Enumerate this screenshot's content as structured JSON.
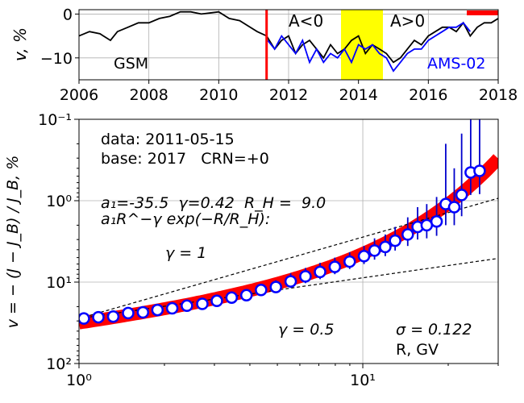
{
  "chart_data": [
    {
      "type": "line",
      "ylabel": "v, %",
      "xlim": [
        2006,
        2018
      ],
      "ylim": [
        -15,
        1
      ],
      "x_ticks": [
        2006,
        2008,
        2010,
        2012,
        2014,
        2016,
        2018
      ],
      "x_tick_labels": [
        "2006",
        "2008",
        "2010",
        "2012",
        "2014",
        "2016",
        "2018"
      ],
      "y_ticks": [
        0,
        -10
      ],
      "y_tick_labels": [
        "0",
        "−10"
      ],
      "grid": true,
      "annotations": {
        "neg_polarity": "A<0",
        "pos_polarity": "A>0"
      },
      "marker_date": 2011.37,
      "polarity_reversal_band": [
        2013.5,
        2014.7
      ],
      "base_period_bar": [
        2017.1,
        2018
      ],
      "series": [
        {
          "name": "GSM",
          "color": "#000000",
          "x": [
            2006.0,
            2006.3,
            2006.6,
            2006.9,
            2007.1,
            2007.4,
            2007.7,
            2008.0,
            2008.3,
            2008.6,
            2008.9,
            2009.2,
            2009.5,
            2009.8,
            2010.0,
            2010.3,
            2010.6,
            2010.9,
            2011.1,
            2011.37,
            2011.6,
            2011.8,
            2012.0,
            2012.2,
            2012.4,
            2012.6,
            2012.8,
            2013.0,
            2013.2,
            2013.4,
            2013.6,
            2013.8,
            2014.0,
            2014.2,
            2014.4,
            2014.6,
            2014.8,
            2015.0,
            2015.2,
            2015.4,
            2015.6,
            2015.8,
            2016.0,
            2016.2,
            2016.4,
            2016.6,
            2016.8,
            2017.0,
            2017.2,
            2017.4,
            2017.6,
            2017.8,
            2018.0
          ],
          "values": [
            -5,
            -4,
            -4.5,
            -6,
            -4,
            -3,
            -2,
            -2,
            -1,
            -0.5,
            0.5,
            0.5,
            0,
            0.3,
            0.5,
            -1,
            -1.5,
            -3,
            -4,
            -5,
            -8,
            -6,
            -5,
            -9,
            -7,
            -6,
            -8,
            -10,
            -7,
            -9,
            -8,
            -6,
            -5,
            -9,
            -7,
            -8,
            -9,
            -11,
            -10,
            -8,
            -6,
            -7,
            -5,
            -4,
            -3,
            -3,
            -4,
            -2,
            -5,
            -3,
            -2,
            -2,
            -1
          ]
        },
        {
          "name": "AMS-02",
          "color": "#0000ff",
          "x": [
            2011.4,
            2011.6,
            2011.8,
            2012.0,
            2012.2,
            2012.4,
            2012.6,
            2012.8,
            2013.0,
            2013.2,
            2013.4,
            2013.6,
            2013.8,
            2014.0,
            2014.2,
            2014.4,
            2014.6,
            2014.8,
            2015.0,
            2015.2,
            2015.4,
            2015.6,
            2015.8,
            2016.0,
            2016.2,
            2016.4,
            2016.6,
            2016.8,
            2017.0,
            2017.2
          ],
          "values": [
            -6,
            -8,
            -5,
            -7,
            -9,
            -6,
            -11,
            -8,
            -11,
            -9,
            -10,
            -8,
            -11,
            -7,
            -8,
            -7,
            -9,
            -10,
            -13,
            -11,
            -9,
            -8,
            -8,
            -6,
            -5,
            -4,
            -3,
            -3,
            -2,
            -4
          ]
        }
      ]
    },
    {
      "type": "scatter",
      "xlabel": "R, GV",
      "ylabel": "v = − (J − J_B) / J_B, %",
      "xscale": "log",
      "yscale": "log",
      "yaxis_inverted": true,
      "xlim": [
        1,
        30
      ],
      "ylim": [
        0.1,
        100
      ],
      "x_tick_labels": [
        "10⁰",
        "10¹"
      ],
      "y_tick_labels": [
        "10⁻¹",
        "10⁰",
        "10¹",
        "10²"
      ],
      "grid": true,
      "info": {
        "data_line": "data: 2011-05-15",
        "base_line": "base: 2017   CRN=+0",
        "params_line": "a₁=-35.5  γ=0.42  R_H =  9.0",
        "formula_line": "a₁R^−γ exp(−R/R_H):",
        "gamma1_label": "γ = 1",
        "gamma05_label": "γ = 0.5",
        "sigma_label": "σ = 0.122"
      },
      "guide_lines": [
        {
          "gamma": 1.0,
          "at_R1": 28
        },
        {
          "gamma": 0.5,
          "at_R1": 28
        }
      ],
      "fit": {
        "a1": 35.5,
        "gamma": 0.42,
        "RH": 9.0
      },
      "points": [
        {
          "R": 1.04,
          "v": 28.0,
          "err": 3
        },
        {
          "R": 1.17,
          "v": 27.0,
          "err": 3
        },
        {
          "R": 1.32,
          "v": 26.5,
          "err": 2.5
        },
        {
          "R": 1.49,
          "v": 24.0,
          "err": 2
        },
        {
          "R": 1.68,
          "v": 23.5,
          "err": 2
        },
        {
          "R": 1.89,
          "v": 22.0,
          "err": 2
        },
        {
          "R": 2.13,
          "v": 21.0,
          "err": 2
        },
        {
          "R": 2.4,
          "v": 19.5,
          "err": 2
        },
        {
          "R": 2.72,
          "v": 18.5,
          "err": 2
        },
        {
          "R": 3.06,
          "v": 17.0,
          "err": 2
        },
        {
          "R": 3.45,
          "v": 15.5,
          "err": 2
        },
        {
          "R": 3.89,
          "v": 14.5,
          "err": 2
        },
        {
          "R": 4.38,
          "v": 12.5,
          "err": 2
        },
        {
          "R": 4.94,
          "v": 11.5,
          "err": 2
        },
        {
          "R": 5.57,
          "v": 9.8,
          "err": 2
        },
        {
          "R": 6.28,
          "v": 8.5,
          "err": 1.8
        },
        {
          "R": 7.07,
          "v": 7.5,
          "err": 1.7
        },
        {
          "R": 7.97,
          "v": 6.5,
          "err": 1.5
        },
        {
          "R": 8.99,
          "v": 5.6,
          "err": 1.3
        },
        {
          "R": 10.1,
          "v": 4.8,
          "err": 1.2
        },
        {
          "R": 11.0,
          "v": 4.1,
          "err": 1.2
        },
        {
          "R": 12.0,
          "v": 3.7,
          "err": 1.1
        },
        {
          "R": 13.0,
          "v": 3.1,
          "err": 1.0
        },
        {
          "R": 14.4,
          "v": 2.6,
          "err": 1.0
        },
        {
          "R": 15.6,
          "v": 2.1,
          "err": 0.9
        },
        {
          "R": 16.8,
          "v": 2.0,
          "err": 0.9
        },
        {
          "R": 18.2,
          "v": 1.8,
          "err": 0.9
        },
        {
          "R": 19.6,
          "v": 1.1,
          "err": 0.9
        },
        {
          "R": 21.0,
          "v": 1.2,
          "err": 0.8
        },
        {
          "R": 22.3,
          "v": 0.85,
          "err": 0.7
        },
        {
          "R": 24.0,
          "v": 0.45,
          "err": 0.4
        },
        {
          "R": 25.8,
          "v": 0.43,
          "err": 0.4
        }
      ]
    }
  ]
}
